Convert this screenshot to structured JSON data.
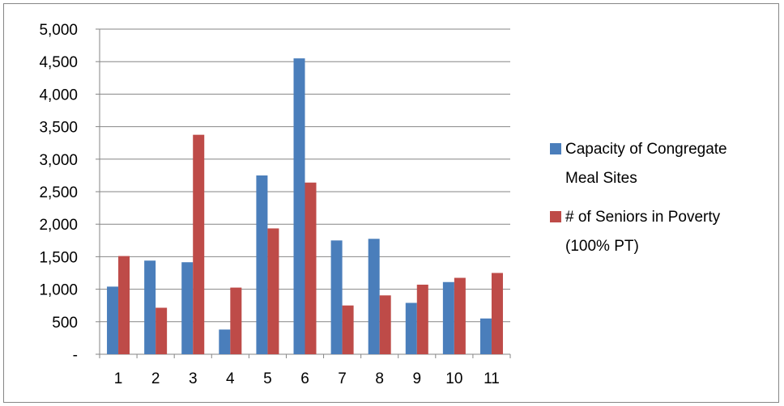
{
  "chart_data": {
    "type": "bar",
    "title": "",
    "xlabel": "",
    "ylabel": "",
    "categories": [
      "1",
      "2",
      "3",
      "4",
      "5",
      "6",
      "7",
      "8",
      "9",
      "10",
      "11"
    ],
    "ylim": [
      0,
      5000
    ],
    "y_ticks": [
      0,
      500,
      1000,
      1500,
      2000,
      2500,
      3000,
      3500,
      4000,
      4500,
      5000
    ],
    "y_tick_labels": [
      "-",
      "500",
      "1,000",
      "1,500",
      "2,000",
      "2,500",
      "3,000",
      "3,500",
      "4,000",
      "4,500",
      "5,000"
    ],
    "grid": true,
    "legend_position": "right",
    "series": [
      {
        "name": "Capacity of Congregate Meal Sites",
        "legend_lines": [
          "Capacity of Congregate",
          "Meal Sites"
        ],
        "color": "#4a7ebb",
        "values": [
          1040,
          1440,
          1415,
          380,
          2750,
          4550,
          1750,
          1775,
          790,
          1110,
          550
        ]
      },
      {
        "name": "# of Seniors in Poverty (100% PT)",
        "legend_lines": [
          "# of Seniors in Poverty",
          "(100% PT)"
        ],
        "color": "#be4b48",
        "values": [
          1510,
          715,
          3375,
          1025,
          1935,
          2640,
          750,
          905,
          1070,
          1175,
          1250
        ]
      }
    ]
  }
}
